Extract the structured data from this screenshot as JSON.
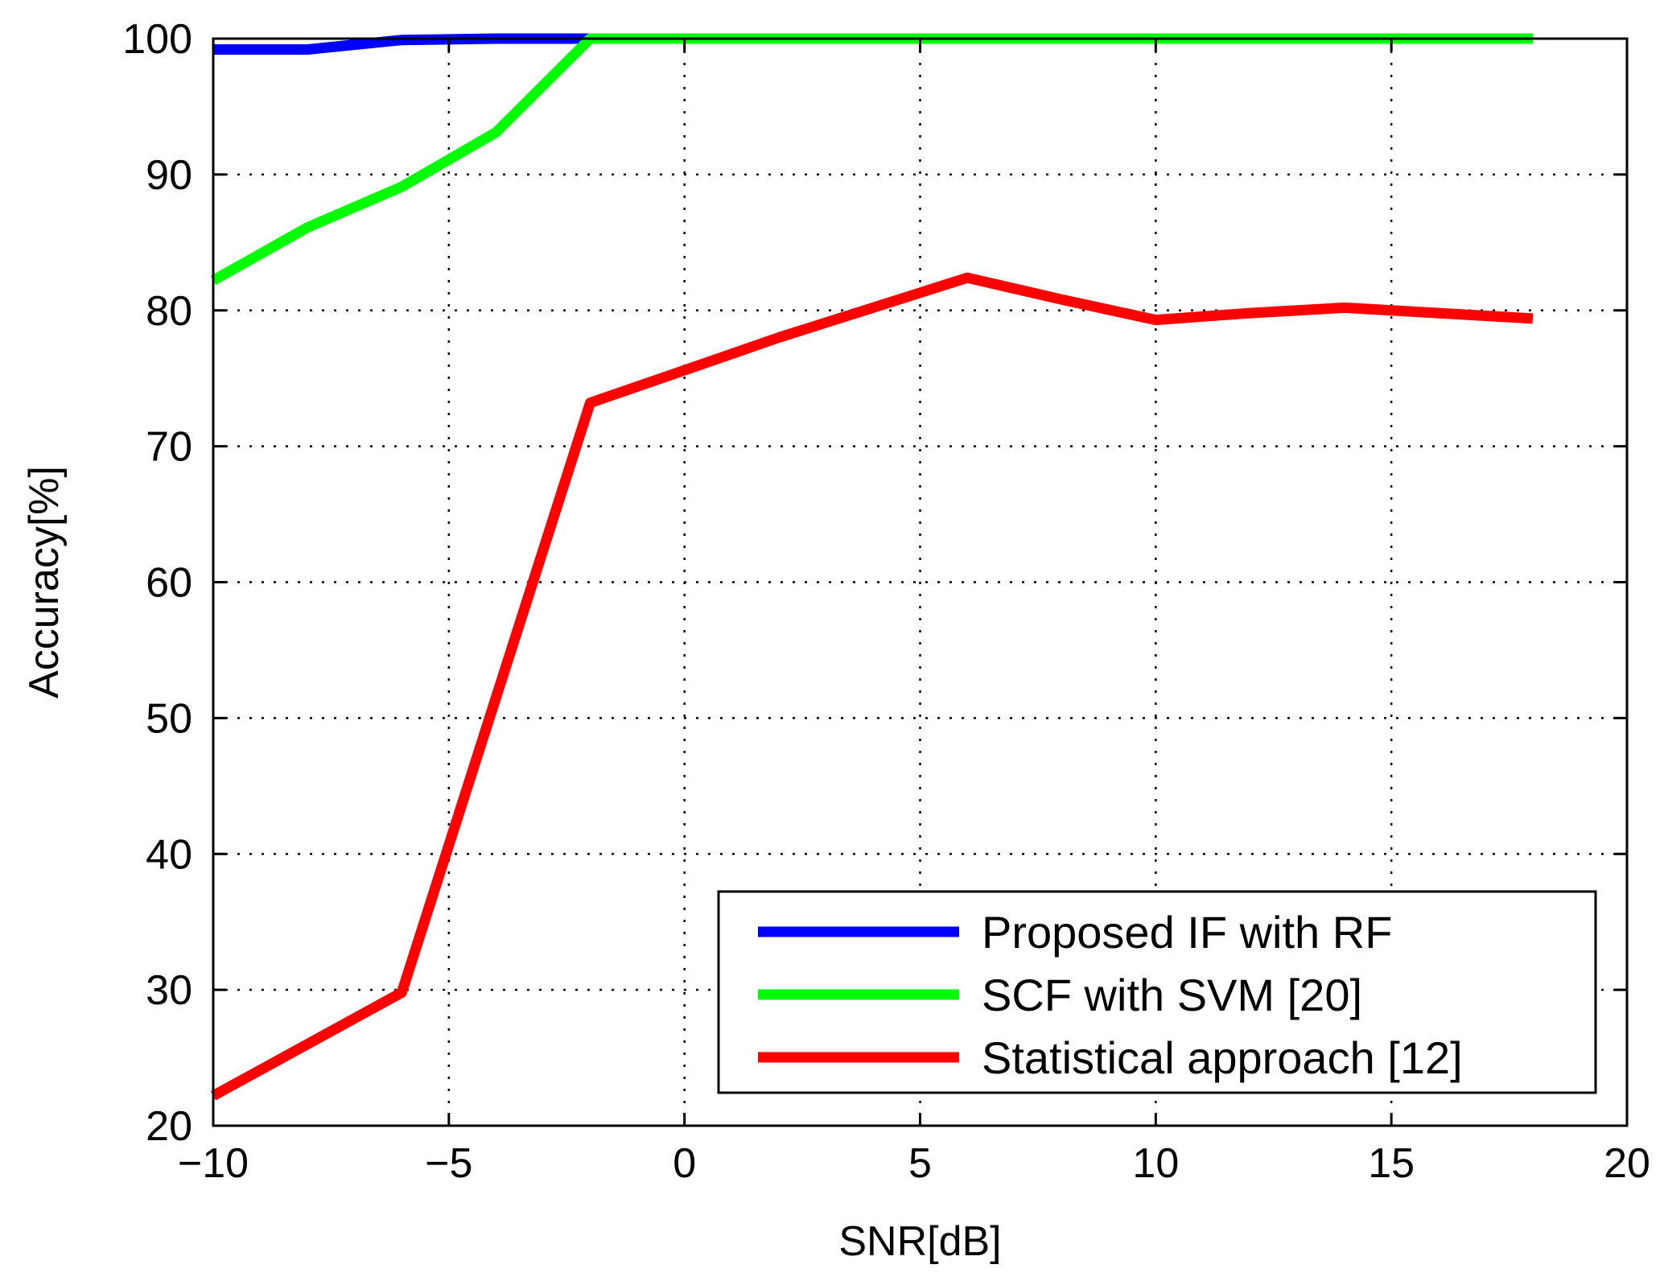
{
  "chart_data": {
    "type": "line",
    "title": "",
    "xlabel": "SNR[dB]",
    "ylabel": "Accuracy[%]",
    "xlim": [
      -10,
      20
    ],
    "ylim": [
      20,
      100
    ],
    "xticks": [
      -10,
      -5,
      0,
      5,
      10,
      15,
      20
    ],
    "yticks": [
      20,
      30,
      40,
      50,
      60,
      70,
      80,
      90,
      100
    ],
    "xtick_labels": [
      "−10",
      "−5",
      "0",
      "5",
      "10",
      "15",
      "20"
    ],
    "ytick_labels": [
      "20",
      "30",
      "40",
      "50",
      "60",
      "70",
      "80",
      "90",
      "100"
    ],
    "grid": true,
    "legend_position": "bottom-right",
    "series": [
      {
        "name": "Proposed IF with RF",
        "color": "#0000ff",
        "x": [
          -10,
          -8,
          -6,
          -4,
          -2,
          0,
          2,
          4,
          6,
          8,
          10,
          12,
          14,
          16,
          18
        ],
        "y": [
          99.2,
          99.2,
          99.9,
          100,
          100,
          100,
          100,
          100,
          100,
          100,
          100,
          100,
          100,
          100,
          100
        ]
      },
      {
        "name": "SCF with SVM [20]",
        "color": "#00ff00",
        "x": [
          -10,
          -8,
          -6,
          -4,
          -2,
          0,
          2,
          4,
          6,
          8,
          10,
          12,
          14,
          16,
          18
        ],
        "y": [
          82.2,
          86.1,
          89.1,
          93.1,
          100,
          100,
          100,
          100,
          100,
          100,
          100,
          100,
          100,
          100,
          100
        ]
      },
      {
        "name": "Statistical approach [12]",
        "color": "#ff0000",
        "x": [
          -10,
          -8,
          -6,
          -4,
          -2,
          0,
          2,
          4,
          6,
          8,
          10,
          12,
          14,
          16,
          18
        ],
        "y": [
          22.2,
          26.0,
          29.8,
          51.5,
          73.2,
          75.6,
          78.0,
          80.2,
          82.4,
          80.8,
          79.3,
          79.8,
          80.2,
          79.8,
          79.4
        ]
      }
    ]
  }
}
